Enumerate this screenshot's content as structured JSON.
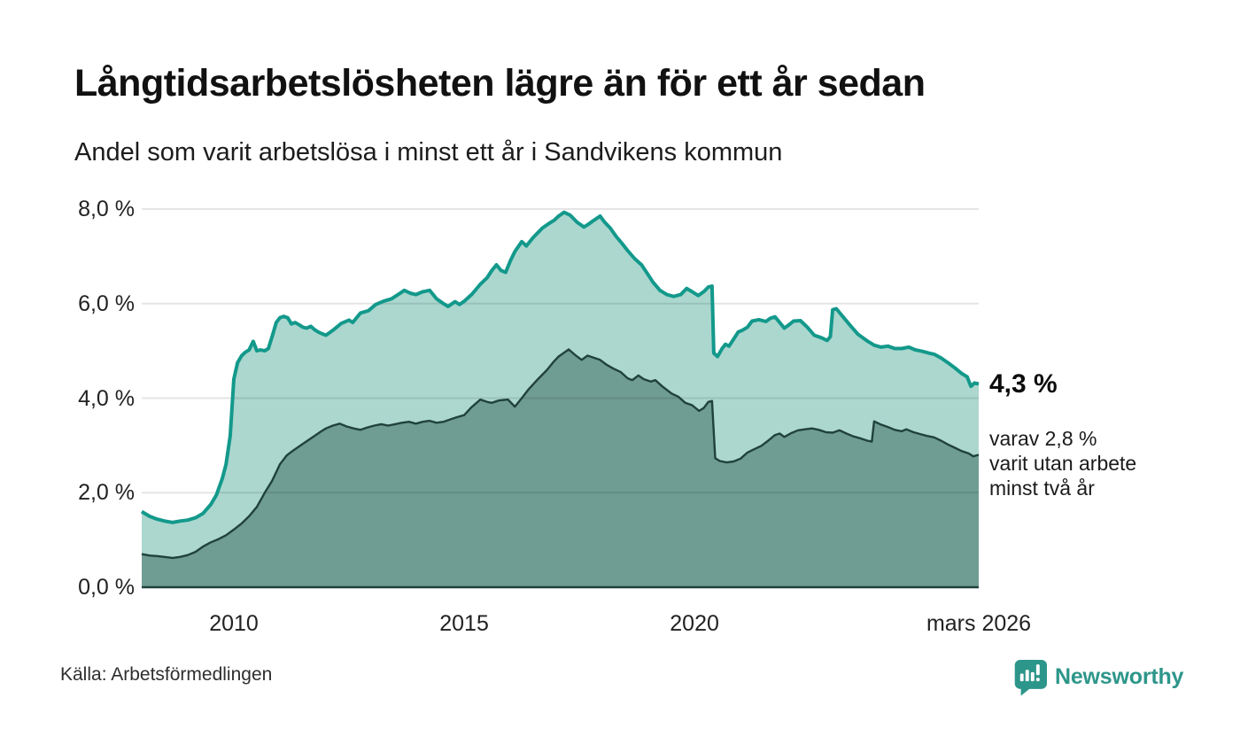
{
  "header": {
    "title": "Långtidsarbetslösheten lägre än för ett år sedan",
    "subtitle": "Andel som varit arbetslösa i minst ett år i Sandvikens kommun"
  },
  "annotations": {
    "latest_total": "4,3 %",
    "latest_two_plus": "varav 2,8 %\nvarit utan arbete\nminst två år"
  },
  "footer": {
    "source": "Källa: Arbetsförmedlingen",
    "brand": "Newsworthy",
    "brand_icon": "newsworthy-speech-bubble-bar-chart-icon"
  },
  "colors": {
    "teal_line": "#13998B",
    "light_fill": "#ABD7CF",
    "dark_fill": "#6F9C93",
    "dark_line": "#20423B",
    "baseline": "#20423B",
    "gridline": "rgba(0,0,0,0.10)",
    "brand": "#2D968A",
    "text": "#111111"
  },
  "chart_data": {
    "type": "area",
    "title": "Andel som varit arbetslösa i minst ett år i Sandvikens kommun",
    "xlabel": "",
    "ylabel": "%",
    "xlim": [
      2008.0,
      2026.17
    ],
    "ylim": [
      0,
      8
    ],
    "grid": true,
    "x_ticks": [
      {
        "x": 2010.0,
        "label": "2010"
      },
      {
        "x": 2015.0,
        "label": "2015"
      },
      {
        "x": 2020.0,
        "label": "2020"
      },
      {
        "x": 2026.17,
        "label": "mars 2026"
      }
    ],
    "y_ticks": [
      {
        "v": 0,
        "label": "0,0 %"
      },
      {
        "v": 2,
        "label": "2,0 %"
      },
      {
        "v": 4,
        "label": "4,0 %"
      },
      {
        "v": 6,
        "label": "6,0 %"
      },
      {
        "v": 8,
        "label": "8,0 %"
      }
    ],
    "series": [
      {
        "name": "Arbetslösa minst ett år",
        "last_value_label": "4,3 %",
        "points": [
          [
            2008.0,
            1.6
          ],
          [
            2008.17,
            1.5
          ],
          [
            2008.33,
            1.44
          ],
          [
            2008.5,
            1.4
          ],
          [
            2008.67,
            1.37
          ],
          [
            2008.83,
            1.4
          ],
          [
            2009.0,
            1.42
          ],
          [
            2009.17,
            1.47
          ],
          [
            2009.33,
            1.56
          ],
          [
            2009.5,
            1.75
          ],
          [
            2009.62,
            1.95
          ],
          [
            2009.75,
            2.3
          ],
          [
            2009.83,
            2.6
          ],
          [
            2009.92,
            3.2
          ],
          [
            2010.0,
            4.4
          ],
          [
            2010.08,
            4.75
          ],
          [
            2010.17,
            4.9
          ],
          [
            2010.25,
            4.97
          ],
          [
            2010.33,
            5.02
          ],
          [
            2010.42,
            5.2
          ],
          [
            2010.5,
            5.0
          ],
          [
            2010.58,
            5.02
          ],
          [
            2010.67,
            5.0
          ],
          [
            2010.75,
            5.05
          ],
          [
            2010.83,
            5.3
          ],
          [
            2010.92,
            5.6
          ],
          [
            2011.0,
            5.7
          ],
          [
            2011.08,
            5.73
          ],
          [
            2011.17,
            5.7
          ],
          [
            2011.25,
            5.57
          ],
          [
            2011.33,
            5.6
          ],
          [
            2011.42,
            5.55
          ],
          [
            2011.5,
            5.5
          ],
          [
            2011.58,
            5.48
          ],
          [
            2011.67,
            5.52
          ],
          [
            2011.75,
            5.45
          ],
          [
            2011.83,
            5.4
          ],
          [
            2011.92,
            5.36
          ],
          [
            2012.0,
            5.33
          ],
          [
            2012.17,
            5.45
          ],
          [
            2012.33,
            5.58
          ],
          [
            2012.5,
            5.65
          ],
          [
            2012.58,
            5.6
          ],
          [
            2012.75,
            5.8
          ],
          [
            2012.92,
            5.85
          ],
          [
            2013.08,
            5.98
          ],
          [
            2013.25,
            6.05
          ],
          [
            2013.42,
            6.1
          ],
          [
            2013.58,
            6.2
          ],
          [
            2013.7,
            6.28
          ],
          [
            2013.83,
            6.22
          ],
          [
            2013.95,
            6.19
          ],
          [
            2014.1,
            6.25
          ],
          [
            2014.25,
            6.28
          ],
          [
            2014.4,
            6.1
          ],
          [
            2014.55,
            6.0
          ],
          [
            2014.65,
            5.94
          ],
          [
            2014.8,
            6.04
          ],
          [
            2014.9,
            5.98
          ],
          [
            2015.0,
            6.05
          ],
          [
            2015.17,
            6.2
          ],
          [
            2015.35,
            6.41
          ],
          [
            2015.5,
            6.55
          ],
          [
            2015.6,
            6.7
          ],
          [
            2015.7,
            6.82
          ],
          [
            2015.8,
            6.7
          ],
          [
            2015.9,
            6.66
          ],
          [
            2016.0,
            6.9
          ],
          [
            2016.1,
            7.1
          ],
          [
            2016.25,
            7.31
          ],
          [
            2016.35,
            7.22
          ],
          [
            2016.5,
            7.4
          ],
          [
            2016.6,
            7.5
          ],
          [
            2016.7,
            7.6
          ],
          [
            2016.85,
            7.7
          ],
          [
            2016.95,
            7.76
          ],
          [
            2017.05,
            7.85
          ],
          [
            2017.17,
            7.93
          ],
          [
            2017.3,
            7.87
          ],
          [
            2017.45,
            7.72
          ],
          [
            2017.6,
            7.62
          ],
          [
            2017.7,
            7.68
          ],
          [
            2017.8,
            7.75
          ],
          [
            2017.95,
            7.85
          ],
          [
            2018.05,
            7.72
          ],
          [
            2018.17,
            7.6
          ],
          [
            2018.3,
            7.42
          ],
          [
            2018.42,
            7.28
          ],
          [
            2018.55,
            7.12
          ],
          [
            2018.7,
            6.95
          ],
          [
            2018.85,
            6.82
          ],
          [
            2019.0,
            6.6
          ],
          [
            2019.1,
            6.45
          ],
          [
            2019.25,
            6.28
          ],
          [
            2019.4,
            6.19
          ],
          [
            2019.55,
            6.15
          ],
          [
            2019.7,
            6.19
          ],
          [
            2019.83,
            6.32
          ],
          [
            2019.95,
            6.25
          ],
          [
            2020.08,
            6.17
          ],
          [
            2020.2,
            6.25
          ],
          [
            2020.3,
            6.35
          ],
          [
            2020.38,
            6.37
          ],
          [
            2020.42,
            4.95
          ],
          [
            2020.5,
            4.88
          ],
          [
            2020.6,
            5.05
          ],
          [
            2020.67,
            5.14
          ],
          [
            2020.75,
            5.1
          ],
          [
            2020.85,
            5.25
          ],
          [
            2020.95,
            5.4
          ],
          [
            2021.05,
            5.44
          ],
          [
            2021.15,
            5.5
          ],
          [
            2021.25,
            5.63
          ],
          [
            2021.4,
            5.66
          ],
          [
            2021.55,
            5.62
          ],
          [
            2021.65,
            5.69
          ],
          [
            2021.75,
            5.72
          ],
          [
            2021.85,
            5.6
          ],
          [
            2021.95,
            5.48
          ],
          [
            2022.05,
            5.55
          ],
          [
            2022.15,
            5.63
          ],
          [
            2022.3,
            5.64
          ],
          [
            2022.45,
            5.5
          ],
          [
            2022.6,
            5.33
          ],
          [
            2022.75,
            5.28
          ],
          [
            2022.88,
            5.22
          ],
          [
            2022.95,
            5.3
          ],
          [
            2023.0,
            5.87
          ],
          [
            2023.08,
            5.89
          ],
          [
            2023.2,
            5.75
          ],
          [
            2023.37,
            5.55
          ],
          [
            2023.55,
            5.35
          ],
          [
            2023.75,
            5.21
          ],
          [
            2023.9,
            5.12
          ],
          [
            2024.05,
            5.08
          ],
          [
            2024.2,
            5.1
          ],
          [
            2024.35,
            5.05
          ],
          [
            2024.5,
            5.05
          ],
          [
            2024.65,
            5.08
          ],
          [
            2024.8,
            5.02
          ],
          [
            2024.95,
            4.99
          ],
          [
            2025.1,
            4.95
          ],
          [
            2025.2,
            4.93
          ],
          [
            2025.35,
            4.85
          ],
          [
            2025.5,
            4.75
          ],
          [
            2025.65,
            4.64
          ],
          [
            2025.8,
            4.52
          ],
          [
            2025.92,
            4.45
          ],
          [
            2026.0,
            4.25
          ],
          [
            2026.08,
            4.32
          ],
          [
            2026.17,
            4.3
          ]
        ]
      },
      {
        "name": "varav arbetslösa minst två år",
        "last_value_label": "2,8 %",
        "points": [
          [
            2008.0,
            0.7
          ],
          [
            2008.17,
            0.67
          ],
          [
            2008.33,
            0.66
          ],
          [
            2008.5,
            0.64
          ],
          [
            2008.67,
            0.62
          ],
          [
            2008.83,
            0.64
          ],
          [
            2009.0,
            0.68
          ],
          [
            2009.17,
            0.75
          ],
          [
            2009.33,
            0.86
          ],
          [
            2009.5,
            0.95
          ],
          [
            2009.67,
            1.02
          ],
          [
            2009.83,
            1.1
          ],
          [
            2010.0,
            1.22
          ],
          [
            2010.17,
            1.35
          ],
          [
            2010.33,
            1.5
          ],
          [
            2010.5,
            1.7
          ],
          [
            2010.67,
            2.0
          ],
          [
            2010.83,
            2.25
          ],
          [
            2011.0,
            2.6
          ],
          [
            2011.15,
            2.79
          ],
          [
            2011.3,
            2.9
          ],
          [
            2011.45,
            3.0
          ],
          [
            2011.6,
            3.1
          ],
          [
            2011.75,
            3.2
          ],
          [
            2011.9,
            3.3
          ],
          [
            2012.0,
            3.36
          ],
          [
            2012.15,
            3.42
          ],
          [
            2012.3,
            3.46
          ],
          [
            2012.45,
            3.4
          ],
          [
            2012.6,
            3.36
          ],
          [
            2012.75,
            3.33
          ],
          [
            2012.9,
            3.38
          ],
          [
            2013.05,
            3.42
          ],
          [
            2013.2,
            3.45
          ],
          [
            2013.35,
            3.42
          ],
          [
            2013.5,
            3.45
          ],
          [
            2013.65,
            3.48
          ],
          [
            2013.8,
            3.5
          ],
          [
            2013.95,
            3.46
          ],
          [
            2014.1,
            3.5
          ],
          [
            2014.25,
            3.52
          ],
          [
            2014.4,
            3.48
          ],
          [
            2014.55,
            3.5
          ],
          [
            2014.7,
            3.55
          ],
          [
            2014.85,
            3.6
          ],
          [
            2015.0,
            3.64
          ],
          [
            2015.15,
            3.8
          ],
          [
            2015.35,
            3.97
          ],
          [
            2015.5,
            3.92
          ],
          [
            2015.6,
            3.9
          ],
          [
            2015.75,
            3.95
          ],
          [
            2015.95,
            3.97
          ],
          [
            2016.1,
            3.82
          ],
          [
            2016.25,
            4.0
          ],
          [
            2016.4,
            4.19
          ],
          [
            2016.6,
            4.4
          ],
          [
            2016.8,
            4.6
          ],
          [
            2016.95,
            4.78
          ],
          [
            2017.05,
            4.88
          ],
          [
            2017.15,
            4.95
          ],
          [
            2017.27,
            5.03
          ],
          [
            2017.4,
            4.92
          ],
          [
            2017.55,
            4.81
          ],
          [
            2017.68,
            4.9
          ],
          [
            2017.8,
            4.86
          ],
          [
            2017.95,
            4.81
          ],
          [
            2018.1,
            4.7
          ],
          [
            2018.25,
            4.62
          ],
          [
            2018.4,
            4.55
          ],
          [
            2018.55,
            4.42
          ],
          [
            2018.65,
            4.38
          ],
          [
            2018.78,
            4.48
          ],
          [
            2018.9,
            4.4
          ],
          [
            2019.05,
            4.35
          ],
          [
            2019.15,
            4.38
          ],
          [
            2019.3,
            4.25
          ],
          [
            2019.5,
            4.1
          ],
          [
            2019.65,
            4.03
          ],
          [
            2019.8,
            3.9
          ],
          [
            2019.95,
            3.85
          ],
          [
            2020.1,
            3.73
          ],
          [
            2020.2,
            3.79
          ],
          [
            2020.3,
            3.92
          ],
          [
            2020.38,
            3.94
          ],
          [
            2020.45,
            2.73
          ],
          [
            2020.55,
            2.67
          ],
          [
            2020.7,
            2.64
          ],
          [
            2020.85,
            2.66
          ],
          [
            2021.0,
            2.72
          ],
          [
            2021.15,
            2.85
          ],
          [
            2021.3,
            2.92
          ],
          [
            2021.45,
            2.99
          ],
          [
            2021.6,
            3.1
          ],
          [
            2021.75,
            3.22
          ],
          [
            2021.85,
            3.25
          ],
          [
            2021.95,
            3.18
          ],
          [
            2022.1,
            3.26
          ],
          [
            2022.25,
            3.32
          ],
          [
            2022.4,
            3.34
          ],
          [
            2022.55,
            3.36
          ],
          [
            2022.7,
            3.33
          ],
          [
            2022.85,
            3.28
          ],
          [
            2023.0,
            3.27
          ],
          [
            2023.15,
            3.32
          ],
          [
            2023.3,
            3.25
          ],
          [
            2023.45,
            3.19
          ],
          [
            2023.6,
            3.15
          ],
          [
            2023.75,
            3.1
          ],
          [
            2023.85,
            3.08
          ],
          [
            2023.9,
            3.51
          ],
          [
            2024.05,
            3.44
          ],
          [
            2024.2,
            3.39
          ],
          [
            2024.35,
            3.33
          ],
          [
            2024.5,
            3.3
          ],
          [
            2024.6,
            3.34
          ],
          [
            2024.75,
            3.28
          ],
          [
            2024.9,
            3.24
          ],
          [
            2025.05,
            3.2
          ],
          [
            2025.2,
            3.17
          ],
          [
            2025.35,
            3.1
          ],
          [
            2025.5,
            3.02
          ],
          [
            2025.65,
            2.95
          ],
          [
            2025.8,
            2.88
          ],
          [
            2025.95,
            2.83
          ],
          [
            2026.05,
            2.77
          ],
          [
            2026.17,
            2.8
          ]
        ]
      }
    ]
  }
}
